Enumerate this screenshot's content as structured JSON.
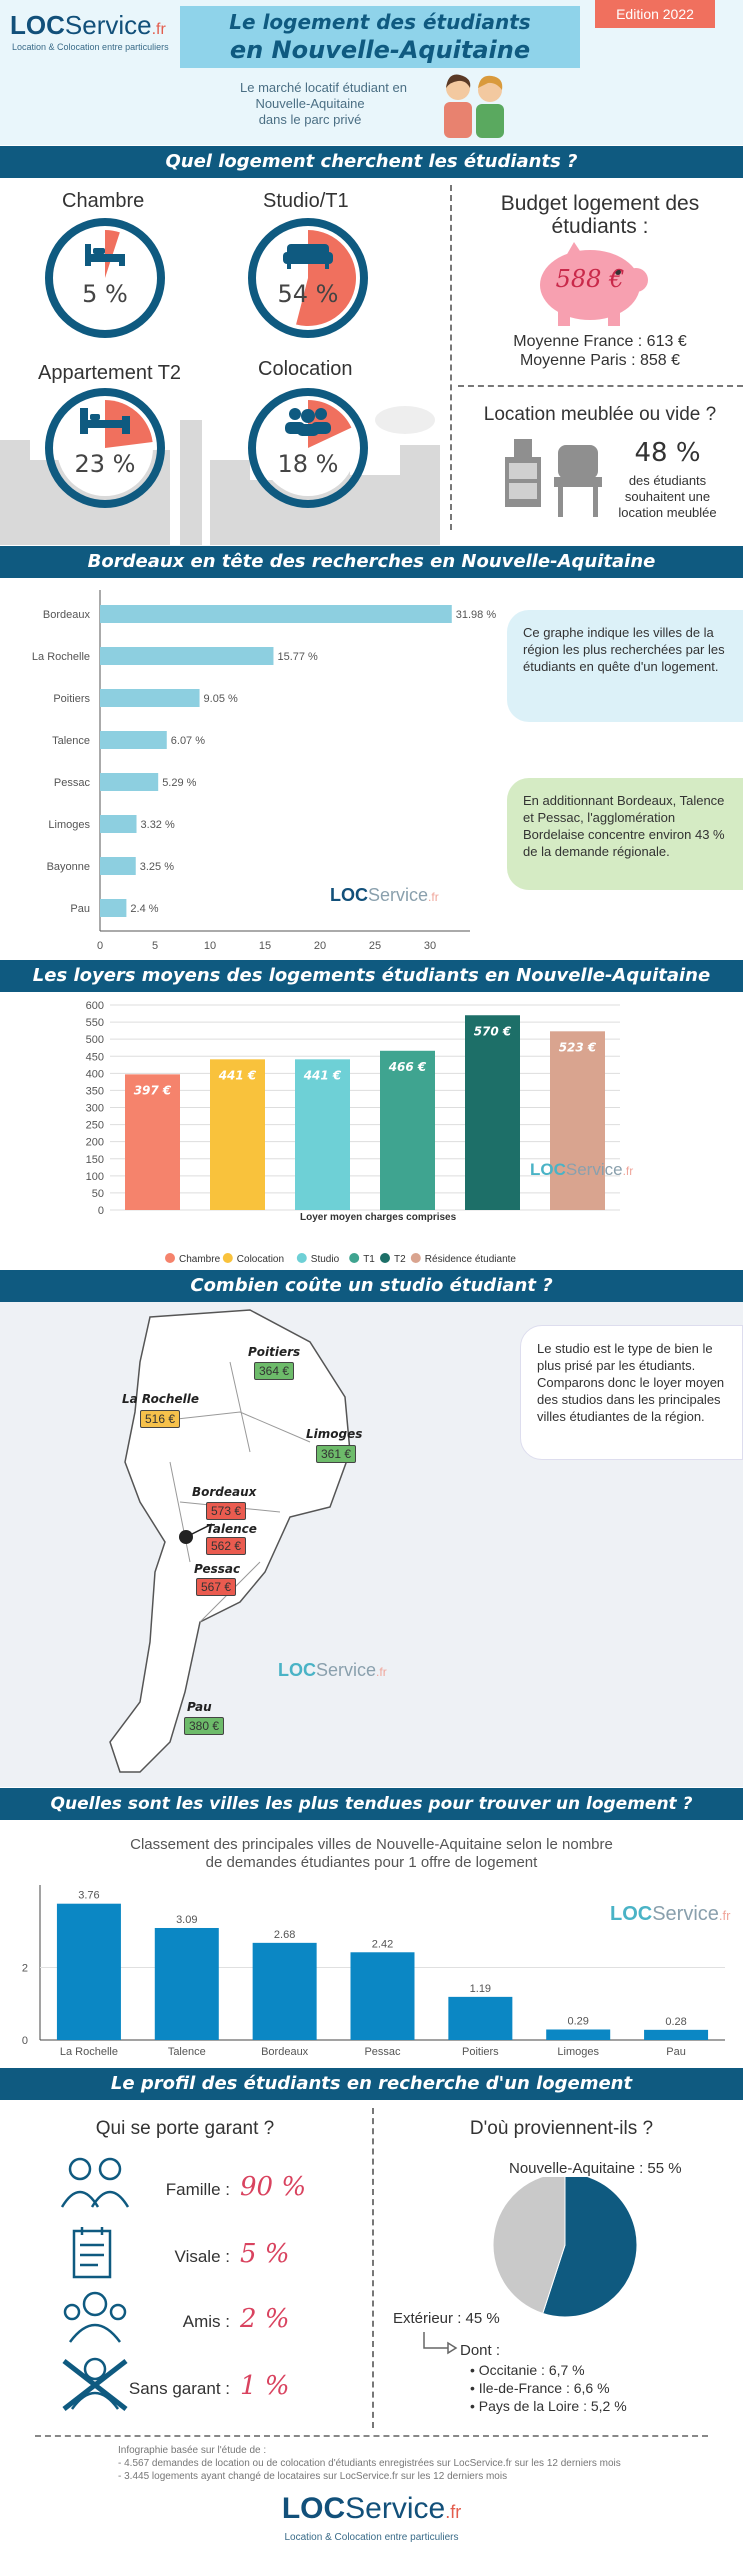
{
  "header": {
    "logo_loc": "LOC",
    "logo_service": "Service",
    "logo_fr": ".fr",
    "logo_tagline": "Location & Colocation entre particuliers",
    "title_line1": "Le logement des étudiants",
    "title_line2": "en Nouvelle-Aquitaine",
    "edition": "Edition 2022",
    "subtitle_l1": "Le marché locatif étudiant en",
    "subtitle_l2": "Nouvelle-Aquitaine",
    "subtitle_l3": "dans le parc privé"
  },
  "section1": {
    "title": "Quel logement cherchent les étudiants ?",
    "items": [
      {
        "label": "Chambre",
        "value": "5 %",
        "pct": 5,
        "icon": "bed-icon"
      },
      {
        "label": "Studio/T1",
        "value": "54 %",
        "pct": 54,
        "icon": "sofa-icon"
      },
      {
        "label": "Appartement T2",
        "value": "23 %",
        "pct": 23,
        "icon": "bedroom-icon"
      },
      {
        "label": "Colocation",
        "value": "18 %",
        "pct": 18,
        "icon": "group-icon"
      }
    ],
    "budget_title_l1": "Budget logement des",
    "budget_title_l2": "étudiants :",
    "budget_value": "588 €",
    "budget_france": "Moyenne France : 613 €",
    "budget_paris": "Moyenne Paris : 858 €",
    "meuble_title": "Location meublée ou vide ?",
    "meuble_pct": "48 %",
    "meuble_l1": "des étudiants",
    "meuble_l2": "souhaitent une",
    "meuble_l3": "location meublée"
  },
  "section2": {
    "title": "Bordeaux en tête des recherches en Nouvelle-Aquitaine",
    "bubble1": "Ce graphe indique les villes de la région les plus recherchées par les étudiants en quête d'un logement.",
    "bubble2": "En additionnant Bordeaux, Talence et Pessac, l'agglomération Bordelaise concentre environ 43 % de la demande régionale."
  },
  "section3": {
    "title": "Les loyers moyens des logements étudiants en Nouvelle-Aquitaine",
    "xlabel": "Loyer moyen charges comprises"
  },
  "section4": {
    "title": "Combien coûte un studio étudiant ?",
    "bubble": "Le studio est le type de bien le plus prisé par les étudiants. Comparons donc le loyer moyen des studios dans les principales villes étudiantes de la région.",
    "cities": [
      {
        "name": "Poitiers",
        "price": "364 €",
        "color": "#6dbb6a"
      },
      {
        "name": "La Rochelle",
        "price": "516 €",
        "color": "#f6c14b"
      },
      {
        "name": "Limoges",
        "price": "361 €",
        "color": "#6dbb6a"
      },
      {
        "name": "Bordeaux",
        "price": "573 €",
        "color": "#ea5b4f"
      },
      {
        "name": "Talence",
        "price": "562 €",
        "color": "#ea5b4f"
      },
      {
        "name": "Pessac",
        "price": "567 €",
        "color": "#ea5b4f"
      },
      {
        "name": "Pau",
        "price": "380 €",
        "color": "#6dbb6a"
      }
    ]
  },
  "section5": {
    "title": "Quelles sont les villes les plus tendues pour trouver un logement  ?",
    "subtitle_l1": "Classement des principales villes de Nouvelle-Aquitaine selon le nombre",
    "subtitle_l2": "de demandes étudiantes pour 1 offre de logement"
  },
  "section6": {
    "title": "Le profil des étudiants en recherche d'un logement",
    "garant_title": "Qui se porte garant ?",
    "garants": [
      {
        "label": "Famille :",
        "value": "90 %",
        "icon": "family-icon"
      },
      {
        "label": "Visale :",
        "value": "5 %",
        "icon": "document-icon"
      },
      {
        "label": "Amis :",
        "value": "2 %",
        "icon": "friends-icon"
      },
      {
        "label": "Sans garant :",
        "value": "1 %",
        "icon": "no-guarantor-icon"
      }
    ],
    "origin_title": "D'où proviennent-ils ?",
    "origin_na": "Nouvelle-Aquitaine : 55 %",
    "origin_ext": "Extérieur : 45 %",
    "dont": "Dont :",
    "dont_items": [
      "Occitanie : 6,7 %",
      "Ile-de-France : 6,6 %",
      "Pays de la Loire : 5,2 %"
    ]
  },
  "footer": {
    "source_l1": "Infographie basée sur l'étude de :",
    "source_l2": "- 4.567 demandes de location ou de colocation d'étudiants enregistrées sur LocService.fr sur les 12 derniers mois",
    "source_l3": "- 3.445 logements ayant changé de locataires sur LocService.fr sur les 12 derniers mois",
    "tagline": "Location & Colocation entre particuliers"
  },
  "colors": {
    "navy": "#0f5a80",
    "accent": "#f0705e",
    "light_blue": "#8dcfe0"
  },
  "chart_data": [
    {
      "type": "pie",
      "title": "Quel logement cherchent les étudiants ?",
      "categories": [
        "Chambre",
        "Studio/T1",
        "Appartement T2",
        "Colocation"
      ],
      "values": [
        5,
        54,
        23,
        18
      ]
    },
    {
      "type": "bar",
      "orientation": "horizontal",
      "title": "Bordeaux en tête des recherches en Nouvelle-Aquitaine",
      "categories": [
        "Bordeaux",
        "La Rochelle",
        "Poitiers",
        "Talence",
        "Pessac",
        "Limoges",
        "Bayonne",
        "Pau"
      ],
      "values": [
        31.98,
        15.77,
        9.05,
        6.07,
        5.29,
        3.32,
        3.25,
        2.4
      ],
      "value_labels": [
        "31.98 %",
        "15.77 %",
        "9.05 %",
        "6.07 %",
        "5.29 %",
        "3.32 %",
        "3.25 %",
        "2.4 %"
      ],
      "xlim": [
        0,
        30
      ],
      "xticks": [
        0,
        5,
        10,
        15,
        20,
        25,
        30
      ],
      "grid": false
    },
    {
      "type": "bar",
      "title": "Les loyers moyens des logements étudiants en Nouvelle-Aquitaine",
      "categories": [
        "Chambre",
        "Colocation",
        "Studio",
        "T1",
        "T2",
        "Résidence étudiante"
      ],
      "values": [
        397,
        441,
        441,
        466,
        570,
        523
      ],
      "value_labels": [
        "397 €",
        "441 €",
        "441 €",
        "466 €",
        "570 €",
        "523 €"
      ],
      "colors": [
        "#f5836c",
        "#f9c23c",
        "#6ed0d6",
        "#3fa490",
        "#1d6f68",
        "#d9a48f"
      ],
      "xlabel": "Loyer moyen charges comprises",
      "ylim": [
        0,
        600
      ],
      "yticks": [
        0,
        50,
        100,
        150,
        200,
        250,
        300,
        350,
        400,
        450,
        500,
        550,
        600
      ],
      "legend": "bottom",
      "grid": true
    },
    {
      "type": "bar",
      "title": "Quelles sont les villes les plus tendues pour trouver un logement  ?",
      "categories": [
        "La Rochelle",
        "Talence",
        "Bordeaux",
        "Pessac",
        "Poitiers",
        "Limoges",
        "Pau"
      ],
      "values": [
        3.76,
        3.09,
        2.68,
        2.42,
        1.19,
        0.29,
        0.28
      ],
      "value_labels": [
        "3.76",
        "3.09",
        "2.68",
        "2.42",
        "1.19",
        "0.29",
        "0.28"
      ],
      "ylim": [
        0,
        4
      ],
      "yticks": [
        0,
        2
      ],
      "grid": true
    },
    {
      "type": "pie",
      "title": "D'où proviennent-ils ?",
      "categories": [
        "Nouvelle-Aquitaine",
        "Extérieur"
      ],
      "values": [
        55,
        45
      ]
    }
  ]
}
